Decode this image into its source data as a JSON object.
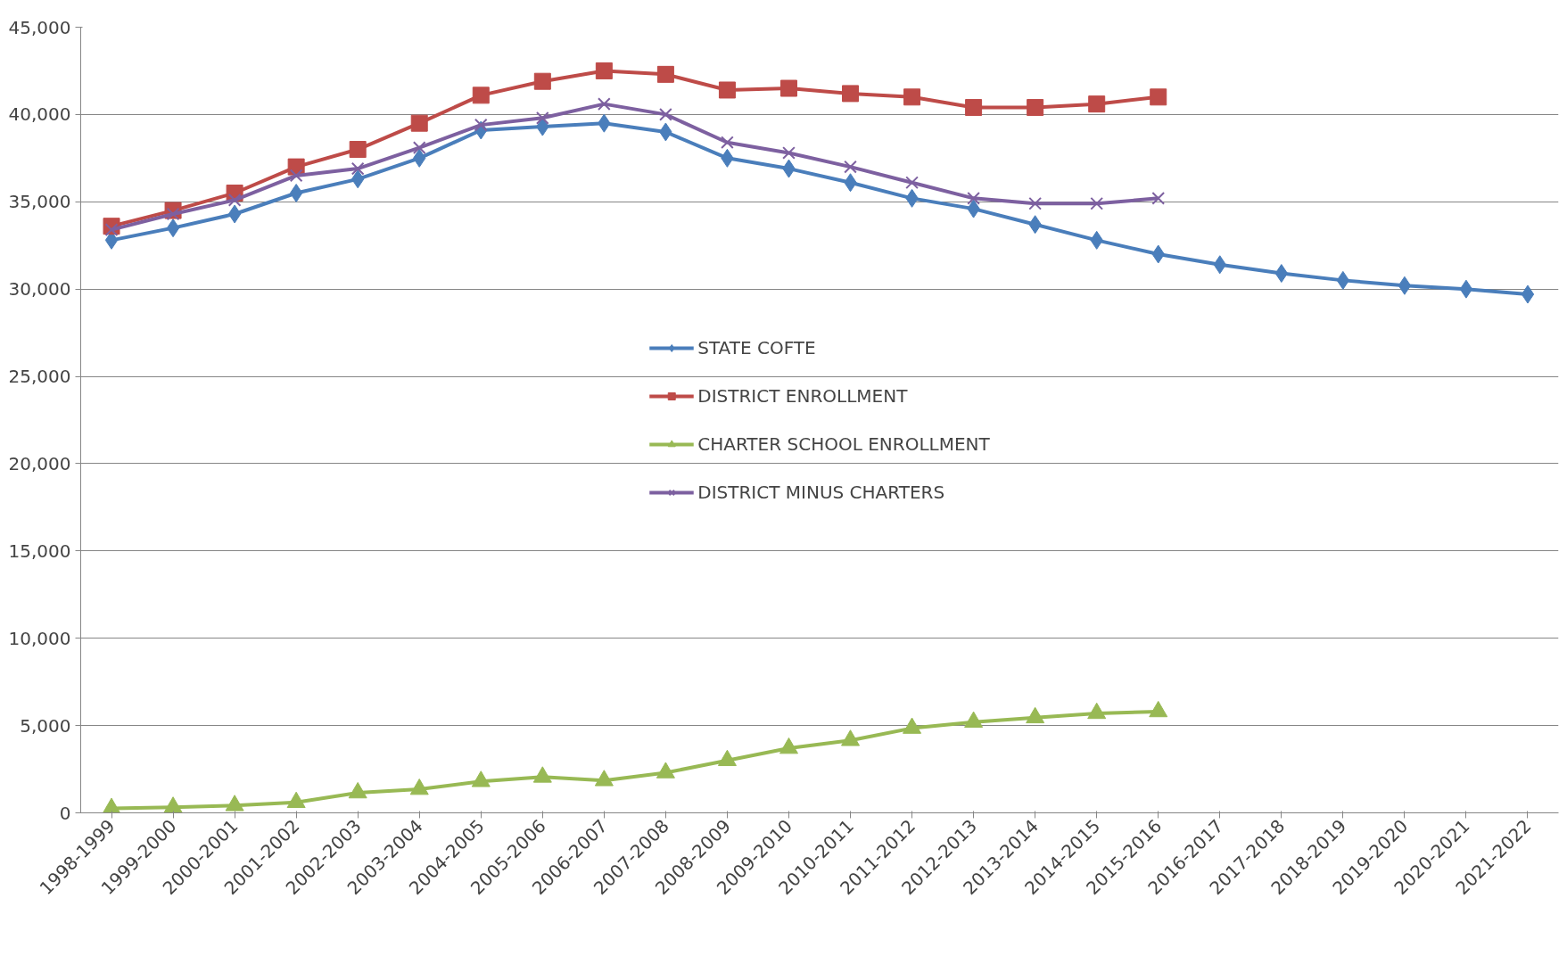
{
  "chart_data": {
    "type": "line",
    "categories": [
      "1998-1999",
      "1999-2000",
      "2000-2001",
      "2001-2002",
      "2002-2003",
      "2003-2004",
      "2004-2005",
      "2005-2006",
      "2006-2007",
      "2007-2008",
      "2008-2009",
      "2009-2010",
      "2010-2011",
      "2011-2012",
      "2012-2013",
      "2013-2014",
      "2014-2015",
      "2015-2016",
      "2016-2017",
      "2017-2018",
      "2018-2019",
      "2019-2020",
      "2020-2021",
      "2021-2022"
    ],
    "series": [
      {
        "name": "STATE COFTE",
        "color": "#4a7ebb",
        "marker": "diamond",
        "values": [
          32800,
          33500,
          34300,
          35500,
          36300,
          37500,
          39100,
          39300,
          39500,
          39000,
          37500,
          36900,
          36100,
          35200,
          34600,
          33700,
          32800,
          32000,
          31400,
          30900,
          30500,
          30200,
          30000,
          29700
        ]
      },
      {
        "name": "DISTRICT ENROLLMENT",
        "color": "#be4b48",
        "marker": "square",
        "values": [
          33600,
          34500,
          35500,
          37000,
          38000,
          39500,
          41100,
          41900,
          42500,
          42300,
          41400,
          41500,
          41200,
          41000,
          40400,
          40400,
          40600,
          41000,
          null,
          null,
          null,
          null,
          null,
          null
        ]
      },
      {
        "name": "CHARTER SCHOOL ENROLLMENT",
        "color": "#98b954",
        "marker": "triangle",
        "values": [
          250,
          320,
          420,
          600,
          1150,
          1350,
          1800,
          2050,
          1850,
          2300,
          3000,
          3700,
          4150,
          4850,
          5200,
          5450,
          5700,
          5800,
          null,
          null,
          null,
          null,
          null,
          null
        ]
      },
      {
        "name": "DISTRICT MINUS CHARTERS",
        "color": "#7d60a0",
        "marker": "cross",
        "values": [
          33400,
          34300,
          35100,
          36500,
          36900,
          38100,
          39400,
          39800,
          40600,
          40000,
          38400,
          37800,
          37000,
          36100,
          35200,
          34900,
          34900,
          35200,
          null,
          null,
          null,
          null,
          null,
          null
        ]
      }
    ],
    "ylim": [
      0,
      45000
    ],
    "yticks": [
      {
        "value": 0,
        "label": "0"
      },
      {
        "value": 5000,
        "label": "5,000"
      },
      {
        "value": 10000,
        "label": "10,000"
      },
      {
        "value": 15000,
        "label": "15,000"
      },
      {
        "value": 20000,
        "label": "20,000"
      },
      {
        "value": 25000,
        "label": "25,000"
      },
      {
        "value": 30000,
        "label": "30,000"
      },
      {
        "value": 35000,
        "label": "35,000"
      },
      {
        "value": 40000,
        "label": "40,000"
      },
      {
        "value": 45000,
        "label": "45,000"
      }
    ],
    "grid": "y",
    "legend": "center",
    "line_style": "solid"
  }
}
